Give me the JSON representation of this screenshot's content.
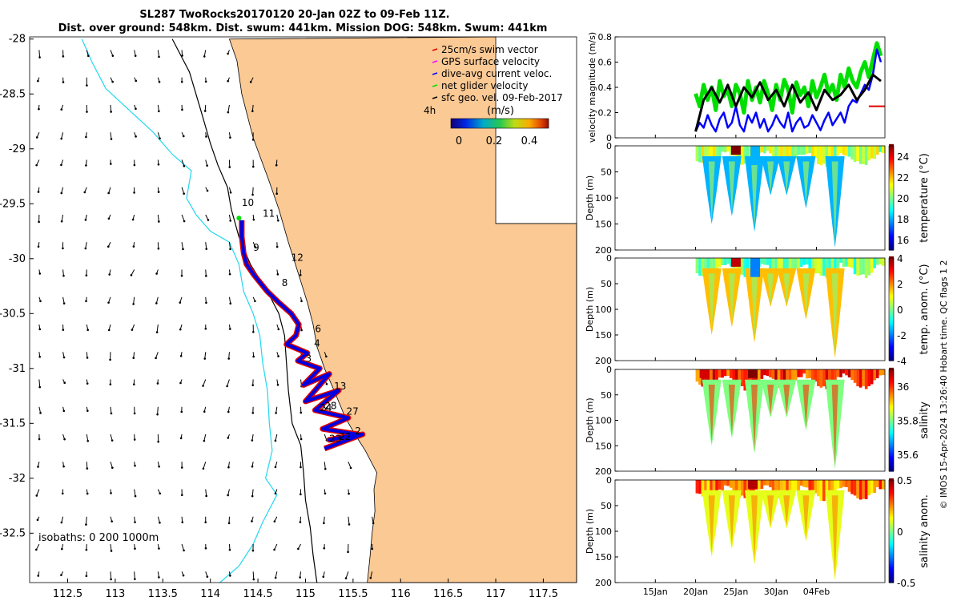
{
  "title": {
    "line1": "SL287 TwoRocks20170120 20-Jan 02Z to 09-Feb 11Z.",
    "line2": "Dist. over ground: 548km. Dist. swum: 441km. Mission DOG: 548km. Swum: 441km"
  },
  "side_note": "© IMOS 15-Apr-2024 13:26:40 Hobart time. QC flags 1  2",
  "map": {
    "isobaths_label": "isobaths: 0   200  1000m",
    "legend": [
      "25cm/s swim vector",
      "GPS surface velocity",
      "dive-avg current veloc.",
      "net glider velocity",
      "sfc geo. vel. 09-Feb-2017"
    ],
    "legend_colors": [
      "#e00000",
      "#ff00ff",
      "#0000ff",
      "#00e000",
      "#000000"
    ],
    "colorbar_unit": "(m/s)",
    "colorbar_side_label": "4h",
    "colorbar_ticks": [
      "0",
      "0.2",
      "0.4"
    ],
    "day_labels": [
      {
        "text": "10",
        "lon": 114.33,
        "lat": -29.52
      },
      {
        "text": "11",
        "lon": 114.55,
        "lat": -29.62
      },
      {
        "text": "9",
        "lon": 114.45,
        "lat": -29.93
      },
      {
        "text": "12",
        "lon": 114.85,
        "lat": -30.02
      },
      {
        "text": "8",
        "lon": 114.75,
        "lat": -30.25
      },
      {
        "text": "6",
        "lon": 115.1,
        "lat": -30.67
      },
      {
        "text": "4",
        "lon": 115.09,
        "lat": -30.8
      },
      {
        "text": "3",
        "lon": 115.0,
        "lat": -30.94
      },
      {
        "text": "13",
        "lon": 115.3,
        "lat": -31.19
      },
      {
        "text": "28",
        "lon": 115.2,
        "lat": -31.37
      },
      {
        "text": "24",
        "lon": 115.15,
        "lat": -31.39
      },
      {
        "text": "27",
        "lon": 115.43,
        "lat": -31.42
      },
      {
        "text": "2",
        "lon": 115.52,
        "lat": -31.6
      },
      {
        "text": "22",
        "lon": 115.35,
        "lat": -31.65
      },
      {
        "text": "23",
        "lon": 115.25,
        "lat": -31.67
      }
    ]
  },
  "chart_data": [
    {
      "type": "line",
      "name": "map_track",
      "title": "SL287 TwoRocks20170120 20-Jan 02Z to 09-Feb 11Z.",
      "xlabel": "",
      "ylabel": "",
      "xlim": [
        112.1,
        117.85
      ],
      "ylim": [
        -32.95,
        -27.98
      ],
      "x_ticks": [
        112.5,
        113,
        113.5,
        114,
        114.5,
        115,
        115.5,
        116,
        116.5,
        117,
        117.5
      ],
      "y_ticks": [
        -28,
        -28.5,
        -29,
        -29.5,
        -30,
        -30.5,
        -31,
        -31.5,
        -32,
        -32.5
      ],
      "track_lon": [
        114.33,
        114.33,
        114.35,
        114.38,
        114.46,
        114.6,
        114.72,
        114.85,
        114.93,
        114.9,
        114.8,
        115.02,
        114.92,
        115.15,
        114.98,
        115.25,
        115.0,
        115.35,
        115.1,
        115.45,
        115.18,
        115.55,
        115.25,
        115.6,
        115.2
      ],
      "track_lat": [
        -29.65,
        -29.8,
        -29.95,
        -30.05,
        -30.15,
        -30.3,
        -30.4,
        -30.5,
        -30.6,
        -30.7,
        -30.78,
        -30.86,
        -30.93,
        -31.0,
        -31.15,
        -31.05,
        -31.3,
        -31.2,
        -31.38,
        -31.45,
        -31.55,
        -31.6,
        -31.65,
        -31.6,
        -31.73
      ]
    },
    {
      "type": "line",
      "name": "velocity_magnitude",
      "title": "",
      "xlabel": "",
      "ylabel": "velocity magnitude (m/s)",
      "ylim": [
        0,
        0.8
      ],
      "y_ticks": [
        0,
        0.2,
        0.4,
        0.6,
        0.8
      ],
      "xlim_days": [
        -10,
        23.5
      ],
      "series": [
        {
          "name": "net glider velocity",
          "color": "#00e000",
          "x": [
            0,
            0.5,
            1,
            1.5,
            2,
            2.5,
            3,
            3.5,
            4,
            4.5,
            5,
            5.5,
            6,
            6.5,
            7,
            7.5,
            8,
            8.5,
            9,
            9.5,
            10,
            10.5,
            11,
            11.5,
            12,
            12.5,
            13,
            13.5,
            14,
            14.5,
            15,
            15.5,
            16,
            16.5,
            17,
            17.5,
            18,
            18.5,
            19,
            19.5,
            20,
            20.5,
            21,
            21.5,
            22,
            22.5,
            23
          ],
          "values": [
            0.35,
            0.25,
            0.42,
            0.3,
            0.4,
            0.22,
            0.45,
            0.33,
            0.38,
            0.25,
            0.42,
            0.35,
            0.2,
            0.45,
            0.3,
            0.4,
            0.28,
            0.45,
            0.35,
            0.22,
            0.42,
            0.3,
            0.46,
            0.38,
            0.2,
            0.44,
            0.34,
            0.4,
            0.25,
            0.45,
            0.32,
            0.4,
            0.5,
            0.35,
            0.42,
            0.3,
            0.5,
            0.4,
            0.55,
            0.45,
            0.4,
            0.52,
            0.6,
            0.48,
            0.62,
            0.75,
            0.65
          ]
        },
        {
          "name": "dive-avg current veloc.",
          "color": "#0000ff",
          "x": [
            0,
            0.5,
            1,
            1.5,
            2,
            2.5,
            3,
            3.5,
            4,
            4.5,
            5,
            5.5,
            6,
            6.5,
            7,
            7.5,
            8,
            8.5,
            9,
            9.5,
            10,
            10.5,
            11,
            11.5,
            12,
            12.5,
            13,
            13.5,
            14,
            14.5,
            15,
            15.5,
            16,
            16.5,
            17,
            17.5,
            18,
            18.5,
            19,
            19.5,
            20,
            20.5,
            21,
            21.5,
            22,
            22.5,
            23
          ],
          "values": [
            0.05,
            0.12,
            0.08,
            0.18,
            0.1,
            0.05,
            0.15,
            0.2,
            0.08,
            0.12,
            0.25,
            0.1,
            0.05,
            0.18,
            0.12,
            0.2,
            0.08,
            0.15,
            0.05,
            0.1,
            0.18,
            0.12,
            0.08,
            0.2,
            0.05,
            0.12,
            0.16,
            0.08,
            0.1,
            0.18,
            0.12,
            0.06,
            0.14,
            0.2,
            0.1,
            0.15,
            0.2,
            0.12,
            0.25,
            0.3,
            0.28,
            0.35,
            0.42,
            0.38,
            0.5,
            0.7,
            0.6
          ]
        },
        {
          "name": "sfc geo. vel. 09-Feb-2017",
          "color": "#000000",
          "x": [
            0,
            1,
            2,
            3,
            4,
            5,
            6,
            7,
            8,
            9,
            10,
            11,
            12,
            13,
            14,
            15,
            16,
            17,
            18,
            19,
            20,
            21,
            22,
            23
          ],
          "values": [
            0.05,
            0.3,
            0.4,
            0.28,
            0.42,
            0.25,
            0.4,
            0.32,
            0.44,
            0.3,
            0.38,
            0.25,
            0.42,
            0.28,
            0.36,
            0.22,
            0.38,
            0.3,
            0.34,
            0.42,
            0.3,
            0.38,
            0.5,
            0.45
          ]
        },
        {
          "name": "25cm/s swim vector",
          "color": "#e00000",
          "x": [
            21.5,
            23.5
          ],
          "values": [
            0.25,
            0.25
          ]
        }
      ]
    },
    {
      "type": "heatmap",
      "name": "temperature",
      "ylabel": "Depth (m)",
      "colorbar_label": "temperature (°C)",
      "ylim": [
        0,
        200
      ],
      "y_ticks": [
        0,
        50,
        100,
        150,
        200
      ],
      "clim": [
        15,
        25
      ],
      "colorbar_ticks": [
        16,
        18,
        20,
        22,
        24
      ],
      "dive_times": [
        2,
        4.5,
        7.3,
        9.3,
        11.3,
        13.7,
        17.3
      ],
      "dive_depths": [
        150,
        135,
        165,
        95,
        95,
        120,
        195
      ],
      "surface_value": 20.5,
      "deep_value": 18,
      "anomalies": [
        [
          4.4,
          5,
          25
        ],
        [
          6.8,
          25,
          18
        ]
      ]
    },
    {
      "type": "heatmap",
      "name": "temp_anomaly",
      "ylabel": "Depth (m)",
      "colorbar_label": "temp. anom. (°C)",
      "ylim": [
        0,
        200
      ],
      "y_ticks": [
        0,
        50,
        100,
        150,
        200
      ],
      "clim": [
        -4,
        4
      ],
      "colorbar_ticks": [
        -4,
        -2,
        0,
        2,
        4
      ],
      "dive_times": [
        2,
        4.5,
        7.3,
        9.3,
        11.3,
        13.7,
        17.3
      ],
      "dive_depths": [
        150,
        135,
        165,
        95,
        95,
        120,
        195
      ],
      "surface_value": 0,
      "deep_value": 1.5,
      "anomalies": [
        [
          4.4,
          5,
          3.5
        ],
        [
          6.8,
          25,
          -2
        ]
      ]
    },
    {
      "type": "heatmap",
      "name": "salinity",
      "ylabel": "Depth (m)",
      "colorbar_label": "salinity",
      "ylim": [
        0,
        200
      ],
      "y_ticks": [
        0,
        50,
        100,
        150,
        200
      ],
      "clim": [
        35.5,
        36.1
      ],
      "colorbar_ticks": [
        35.6,
        35.8,
        36
      ],
      "dive_times": [
        2,
        4.5,
        7.3,
        9.3,
        11.3,
        13.7,
        17.3
      ],
      "dive_depths": [
        150,
        135,
        165,
        95,
        95,
        120,
        195
      ],
      "surface_value": 36.0,
      "deep_value": 35.8,
      "anomalies": [
        [
          6.5,
          5,
          36.1
        ],
        [
          0.5,
          5,
          36.05
        ]
      ]
    },
    {
      "type": "heatmap",
      "name": "salinity_anomaly",
      "ylabel": "Depth (m)",
      "colorbar_label": "salinity anom.",
      "ylim": [
        0,
        200
      ],
      "y_ticks": [
        0,
        50,
        100,
        150,
        200
      ],
      "clim": [
        -0.5,
        0.5
      ],
      "colorbar_ticks": [
        -0.5,
        0,
        0.5
      ],
      "dive_times": [
        2,
        4.5,
        7.3,
        9.3,
        11.3,
        13.7,
        17.3
      ],
      "dive_depths": [
        150,
        135,
        165,
        95,
        95,
        120,
        195
      ],
      "surface_value": 0.25,
      "deep_value": 0.1,
      "anomalies": [
        [
          6.5,
          5,
          0.45
        ]
      ]
    }
  ],
  "time_axis": {
    "ticks": [
      {
        "label": "15Jan",
        "day": -5
      },
      {
        "label": "20Jan",
        "day": 0
      },
      {
        "label": "25Jan",
        "day": 5
      },
      {
        "label": "30Jan",
        "day": 10
      },
      {
        "label": "04Feb",
        "day": 15
      }
    ]
  }
}
